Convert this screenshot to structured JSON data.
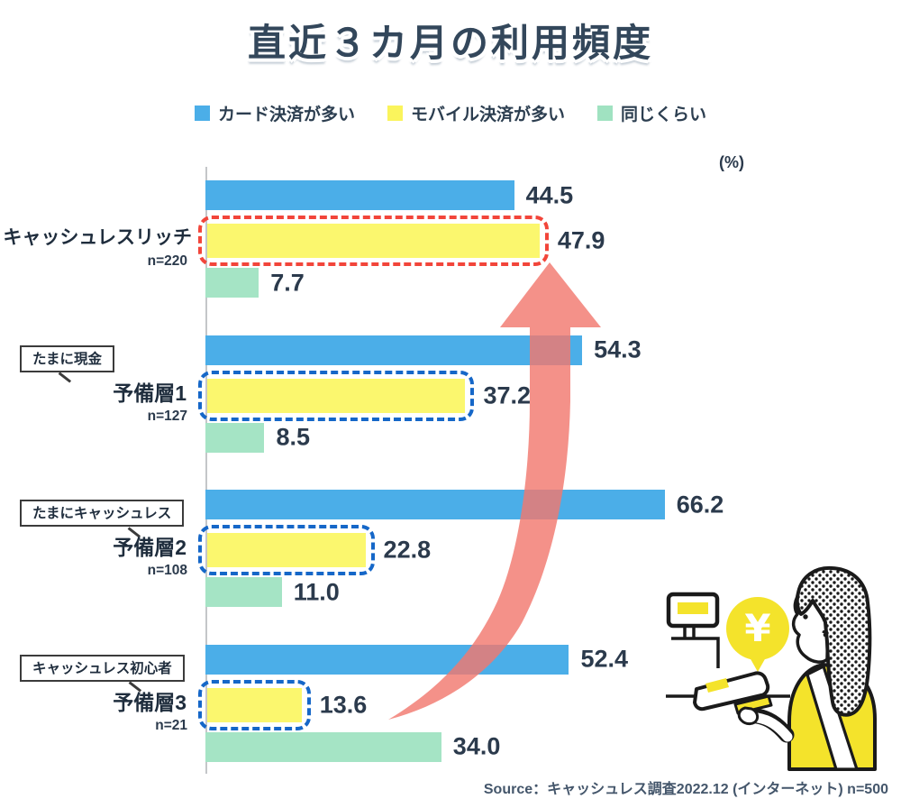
{
  "title": "直近３カ月の利用頻度",
  "unit_label": "(%)",
  "legend": [
    {
      "label": "カード決済が多い",
      "color": "#4BAEE8"
    },
    {
      "label": "モバイル決済が多い",
      "color": "#FAF45C"
    },
    {
      "label": "同じくらい",
      "color": "#A0E2C1"
    }
  ],
  "source": "Source：キャッシュレス調査2022.12 (インターネット) n=500",
  "chart_data": {
    "type": "bar",
    "orientation": "horizontal",
    "unit": "%",
    "xlim": [
      0,
      70
    ],
    "series_names": [
      "カード決済が多い",
      "モバイル決済が多い",
      "同じくらい"
    ],
    "groups": [
      {
        "tag": null,
        "name": "キャッシュレスリッチ",
        "n": "n=220",
        "values": [
          44.5,
          47.9,
          7.7
        ],
        "highlight": "red-dashed"
      },
      {
        "tag": "たまに現金",
        "name": "予備層1",
        "n": "n=127",
        "values": [
          54.3,
          37.2,
          8.5
        ],
        "highlight": "blue-dashed"
      },
      {
        "tag": "たまにキャッシュレス",
        "name": "予備層2",
        "n": "n=108",
        "values": [
          66.2,
          22.8,
          11.0
        ],
        "highlight": "blue-dashed"
      },
      {
        "tag": "キャッシュレス初心者",
        "name": "予備層3",
        "n": "n=21",
        "values": [
          52.4,
          13.6,
          34.0
        ],
        "highlight": "blue-dashed"
      }
    ],
    "annotations": {
      "arrow": "upward trend arrow from 予備層3 toward キャッシュレスリッチ mobile-payment bar"
    },
    "colors": {
      "bar_blue": "#4BAEE8",
      "bar_yellow": "#FBF76E",
      "bar_green": "#A5E4C5",
      "highlight_red": "#F2453A",
      "highlight_blue": "#1567C8",
      "arrow_pink": "#F2796F"
    }
  },
  "illustration": {
    "description": "woman paying by card at a register terminal",
    "yen_symbol": "¥"
  }
}
